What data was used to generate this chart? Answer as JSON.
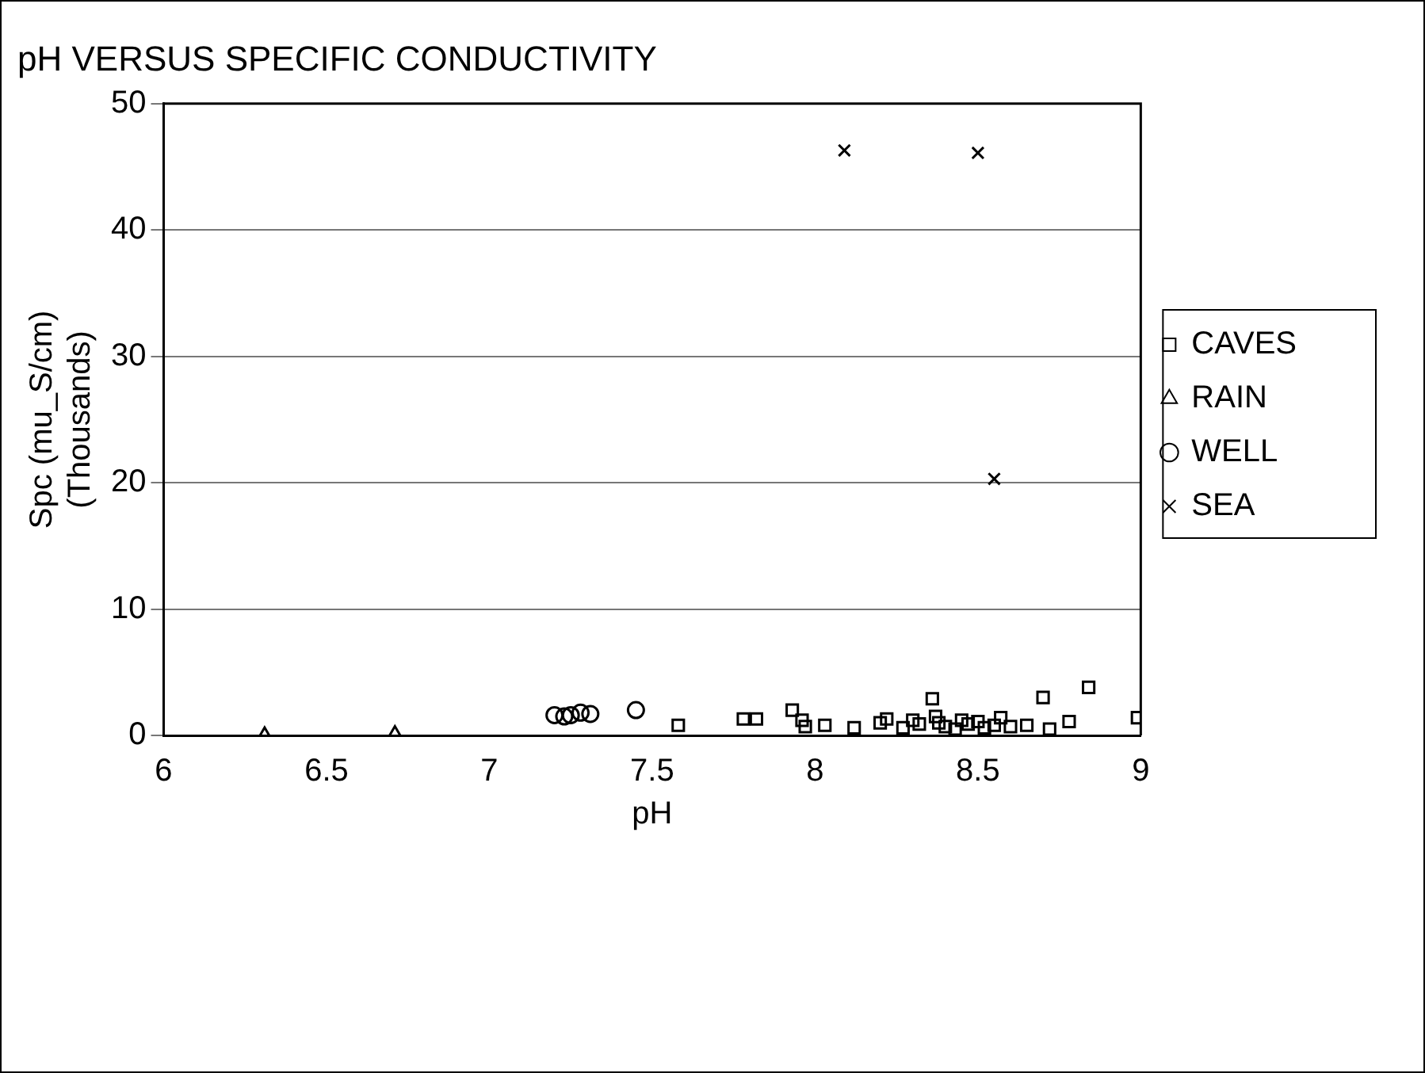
{
  "chart_data": {
    "type": "scatter",
    "title": "pH VERSUS SPECIFIC CONDUCTIVITY",
    "xlabel": "pH",
    "ylabel": "Spc (mu_S/cm)\n(Thousands)",
    "xlim": [
      6,
      9
    ],
    "xticks": [
      6,
      6.5,
      7,
      7.5,
      8,
      8.5,
      9
    ],
    "ylim": [
      0,
      50
    ],
    "yticks": [
      0,
      10,
      20,
      30,
      40,
      50
    ],
    "grid": "y",
    "legend": "right",
    "series": [
      {
        "name": "CAVES",
        "color": "#000000",
        "marker": "square",
        "x": [
          7.58,
          7.78,
          7.82,
          7.93,
          7.96,
          7.97,
          8.03,
          8.12,
          8.2,
          8.22,
          8.27,
          8.3,
          8.32,
          8.36,
          8.37,
          8.38,
          8.4,
          8.43,
          8.45,
          8.47,
          8.5,
          8.52,
          8.55,
          8.57,
          8.6,
          8.65,
          8.7,
          8.72,
          8.78,
          8.84,
          8.99
        ],
        "values": [
          0.8,
          1.3,
          1.3,
          2.0,
          1.2,
          0.7,
          0.8,
          0.6,
          1.0,
          1.3,
          0.6,
          1.2,
          0.9,
          2.9,
          1.5,
          1.0,
          0.7,
          0.5,
          1.2,
          0.9,
          1.1,
          0.6,
          0.8,
          1.4,
          0.7,
          0.8,
          3.0,
          0.5,
          1.1,
          3.8,
          1.4
        ]
      },
      {
        "name": "RAIN",
        "color": "#000000",
        "marker": "triangle",
        "x": [
          6.31,
          6.71
        ],
        "values": [
          0,
          0.1
        ]
      },
      {
        "name": "WELL",
        "color": "#000000",
        "marker": "circle",
        "x": [
          7.2,
          7.23,
          7.25,
          7.28,
          7.31,
          7.45
        ],
        "values": [
          1.6,
          1.5,
          1.6,
          1.8,
          1.7,
          2.0
        ]
      },
      {
        "name": "SEA",
        "color": "#000000",
        "marker": "cross",
        "x": [
          8.09,
          8.5,
          8.55
        ],
        "values": [
          46.3,
          46.1,
          20.3
        ]
      }
    ]
  }
}
